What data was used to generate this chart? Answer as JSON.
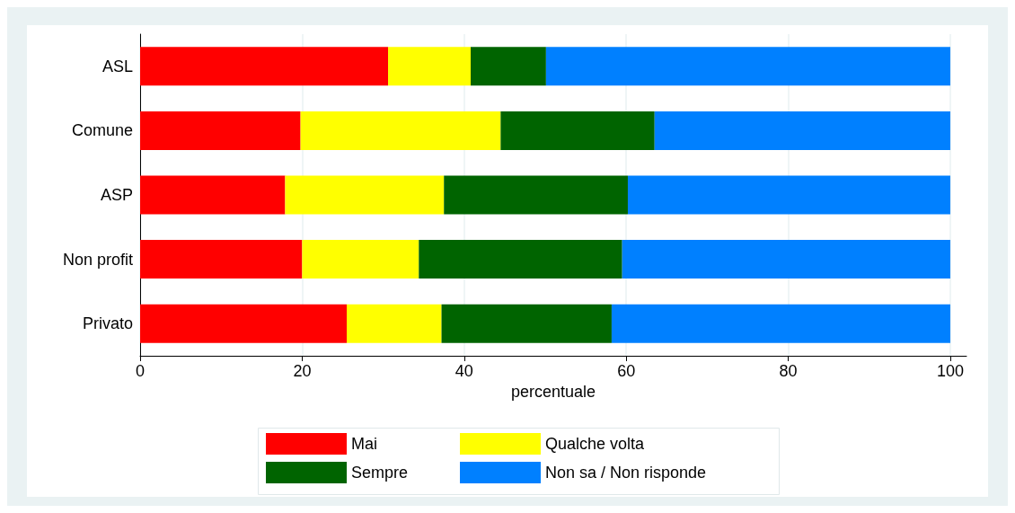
{
  "chart_data": {
    "type": "bar",
    "orientation": "horizontal",
    "stacked": true,
    "xlabel": "percentuale",
    "categories": [
      "ASL",
      "Comune",
      "ASP",
      "Non profit",
      "Privato"
    ],
    "series": [
      {
        "name": "Mai",
        "color": "#ff0000",
        "values": [
          30.6,
          19.8,
          17.9,
          20.0,
          25.5
        ]
      },
      {
        "name": "Qualche volta",
        "color": "#ffff00",
        "values": [
          10.2,
          24.7,
          19.6,
          14.4,
          11.7
        ]
      },
      {
        "name": "Sempre",
        "color": "#006400",
        "values": [
          9.3,
          19.0,
          22.7,
          25.1,
          21.0
        ]
      },
      {
        "name": "Non sa / Non risponde",
        "color": "#0080ff",
        "values": [
          49.9,
          36.5,
          39.8,
          40.5,
          41.8
        ]
      }
    ],
    "xlim": [
      0,
      102
    ],
    "xticks": [
      0,
      20,
      40,
      60,
      80,
      100
    ],
    "grid": "x",
    "legend": "bottom"
  }
}
